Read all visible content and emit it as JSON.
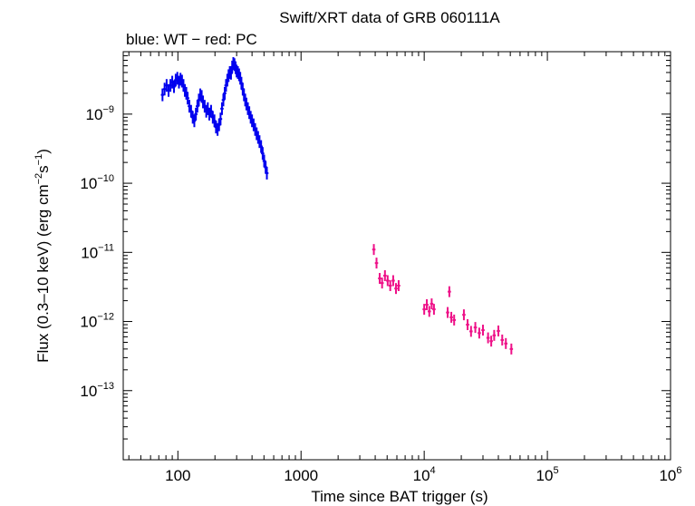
{
  "chart_data": {
    "type": "scatter",
    "title": "Swift/XRT data of GRB 060111A",
    "subtitle": "blue: WT − red: PC",
    "xlabel": "Time since BAT trigger (s)",
    "ylabel_main": "Flux (0.3–10 keV) (erg cm",
    "ylabel_exp1": "−2",
    "ylabel_mid": "s",
    "ylabel_exp2": "−1",
    "ylabel_end": ")",
    "x_scale": "log",
    "y_scale": "log",
    "xlim": [
      36,
      1000000
    ],
    "ylim": [
      1e-14,
      8e-09
    ],
    "x_ticks": [
      {
        "value": 100,
        "base": "100",
        "exp": ""
      },
      {
        "value": 1000,
        "base": "1000",
        "exp": ""
      },
      {
        "value": 10000,
        "base": "10",
        "exp": "4"
      },
      {
        "value": 100000,
        "base": "10",
        "exp": "5"
      },
      {
        "value": 1000000,
        "base": "10",
        "exp": "6"
      }
    ],
    "y_ticks": [
      {
        "value": 1e-09,
        "base": "10",
        "exp": "−9"
      },
      {
        "value": 1e-10,
        "base": "10",
        "exp": "−10"
      },
      {
        "value": 1e-11,
        "base": "10",
        "exp": "−11"
      },
      {
        "value": 1e-12,
        "base": "10",
        "exp": "−12"
      },
      {
        "value": 1e-13,
        "base": "10",
        "exp": "−13"
      }
    ],
    "grid": false,
    "colors": {
      "WT": "#0000ee",
      "PC": "#ee1188"
    },
    "series": [
      {
        "mode": "WT",
        "points": [
          [
            75,
            1.9e-09
          ],
          [
            78,
            2.3e-09
          ],
          [
            81,
            2.6e-09
          ],
          [
            84,
            2.2e-09
          ],
          [
            87,
            2.6e-09
          ],
          [
            90,
            2.9e-09
          ],
          [
            93,
            2.5e-09
          ],
          [
            96,
            3.1e-09
          ],
          [
            99,
            3.3e-09
          ],
          [
            102,
            2.9e-09
          ],
          [
            105,
            3.2e-09
          ],
          [
            108,
            3e-09
          ],
          [
            111,
            2.6e-09
          ],
          [
            114,
            2.2e-09
          ],
          [
            117,
            2e-09
          ],
          [
            120,
            1.7e-09
          ],
          [
            124,
            1.3e-09
          ],
          [
            128,
            1.1e-09
          ],
          [
            132,
            9e-10
          ],
          [
            136,
            8e-10
          ],
          [
            140,
            1e-09
          ],
          [
            144,
            1.3e-09
          ],
          [
            148,
            1.6e-09
          ],
          [
            152,
            1.9e-09
          ],
          [
            156,
            1.8e-09
          ],
          [
            160,
            1.5e-09
          ],
          [
            165,
            1.3e-09
          ],
          [
            170,
            1.1e-09
          ],
          [
            175,
            1.2e-09
          ],
          [
            180,
            1e-09
          ],
          [
            186,
            1.1e-09
          ],
          [
            192,
            9e-10
          ],
          [
            198,
            8e-10
          ],
          [
            204,
            6.5e-10
          ],
          [
            210,
            6e-10
          ],
          [
            216,
            7e-10
          ],
          [
            222,
            8.5e-10
          ],
          [
            228,
            1.2e-09
          ],
          [
            234,
            1.6e-09
          ],
          [
            240,
            2e-09
          ],
          [
            246,
            2.6e-09
          ],
          [
            252,
            3.1e-09
          ],
          [
            258,
            3.6e-09
          ],
          [
            264,
            4e-09
          ],
          [
            270,
            3.9e-09
          ],
          [
            276,
            4.8e-09
          ],
          [
            282,
            5.4e-09
          ],
          [
            288,
            5.2e-09
          ],
          [
            294,
            4.7e-09
          ],
          [
            300,
            4.2e-09
          ],
          [
            307,
            4e-09
          ],
          [
            314,
            3.7e-09
          ],
          [
            321,
            3.3e-09
          ],
          [
            328,
            2.8e-09
          ],
          [
            336,
            2.3e-09
          ],
          [
            344,
            1.9e-09
          ],
          [
            352,
            1.6e-09
          ],
          [
            360,
            1.4e-09
          ],
          [
            370,
            1.2e-09
          ],
          [
            380,
            1.05e-09
          ],
          [
            390,
            9e-10
          ],
          [
            400,
            8e-10
          ],
          [
            412,
            7e-10
          ],
          [
            424,
            6e-10
          ],
          [
            436,
            5.2e-10
          ],
          [
            448,
            4.6e-10
          ],
          [
            460,
            4e-10
          ],
          [
            474,
            3.4e-10
          ],
          [
            488,
            2.7e-10
          ],
          [
            502,
            2.1e-10
          ],
          [
            516,
            1.7e-10
          ],
          [
            528,
            1.4e-10
          ]
        ]
      },
      {
        "mode": "PC",
        "points": [
          [
            3900,
            1.1e-11
          ],
          [
            4100,
            7e-12
          ],
          [
            4350,
            4.2e-12
          ],
          [
            4550,
            3.6e-12
          ],
          [
            4800,
            4.6e-12
          ],
          [
            5050,
            3.9e-12
          ],
          [
            5300,
            3.3e-12
          ],
          [
            5600,
            3.9e-12
          ],
          [
            5900,
            3e-12
          ],
          [
            6200,
            3.3e-12
          ],
          [
            10000,
            1.5e-12
          ],
          [
            10500,
            1.75e-12
          ],
          [
            11000,
            1.4e-12
          ],
          [
            11500,
            1.8e-12
          ],
          [
            12000,
            1.5e-12
          ],
          [
            15500,
            1.35e-12
          ],
          [
            16000,
            2.7e-12
          ],
          [
            16600,
            1.15e-12
          ],
          [
            17500,
            1.05e-12
          ],
          [
            21000,
            1.25e-12
          ],
          [
            22500,
            9e-13
          ],
          [
            24000,
            7.2e-13
          ],
          [
            26000,
            8.2e-13
          ],
          [
            28000,
            6.8e-13
          ],
          [
            30000,
            7.5e-13
          ],
          [
            33000,
            5.8e-13
          ],
          [
            35000,
            5.2e-13
          ],
          [
            37000,
            6.3e-13
          ],
          [
            40000,
            7.3e-13
          ],
          [
            43000,
            5.4e-13
          ],
          [
            46000,
            4.8e-13
          ],
          [
            51000,
            4e-13
          ]
        ]
      }
    ]
  }
}
